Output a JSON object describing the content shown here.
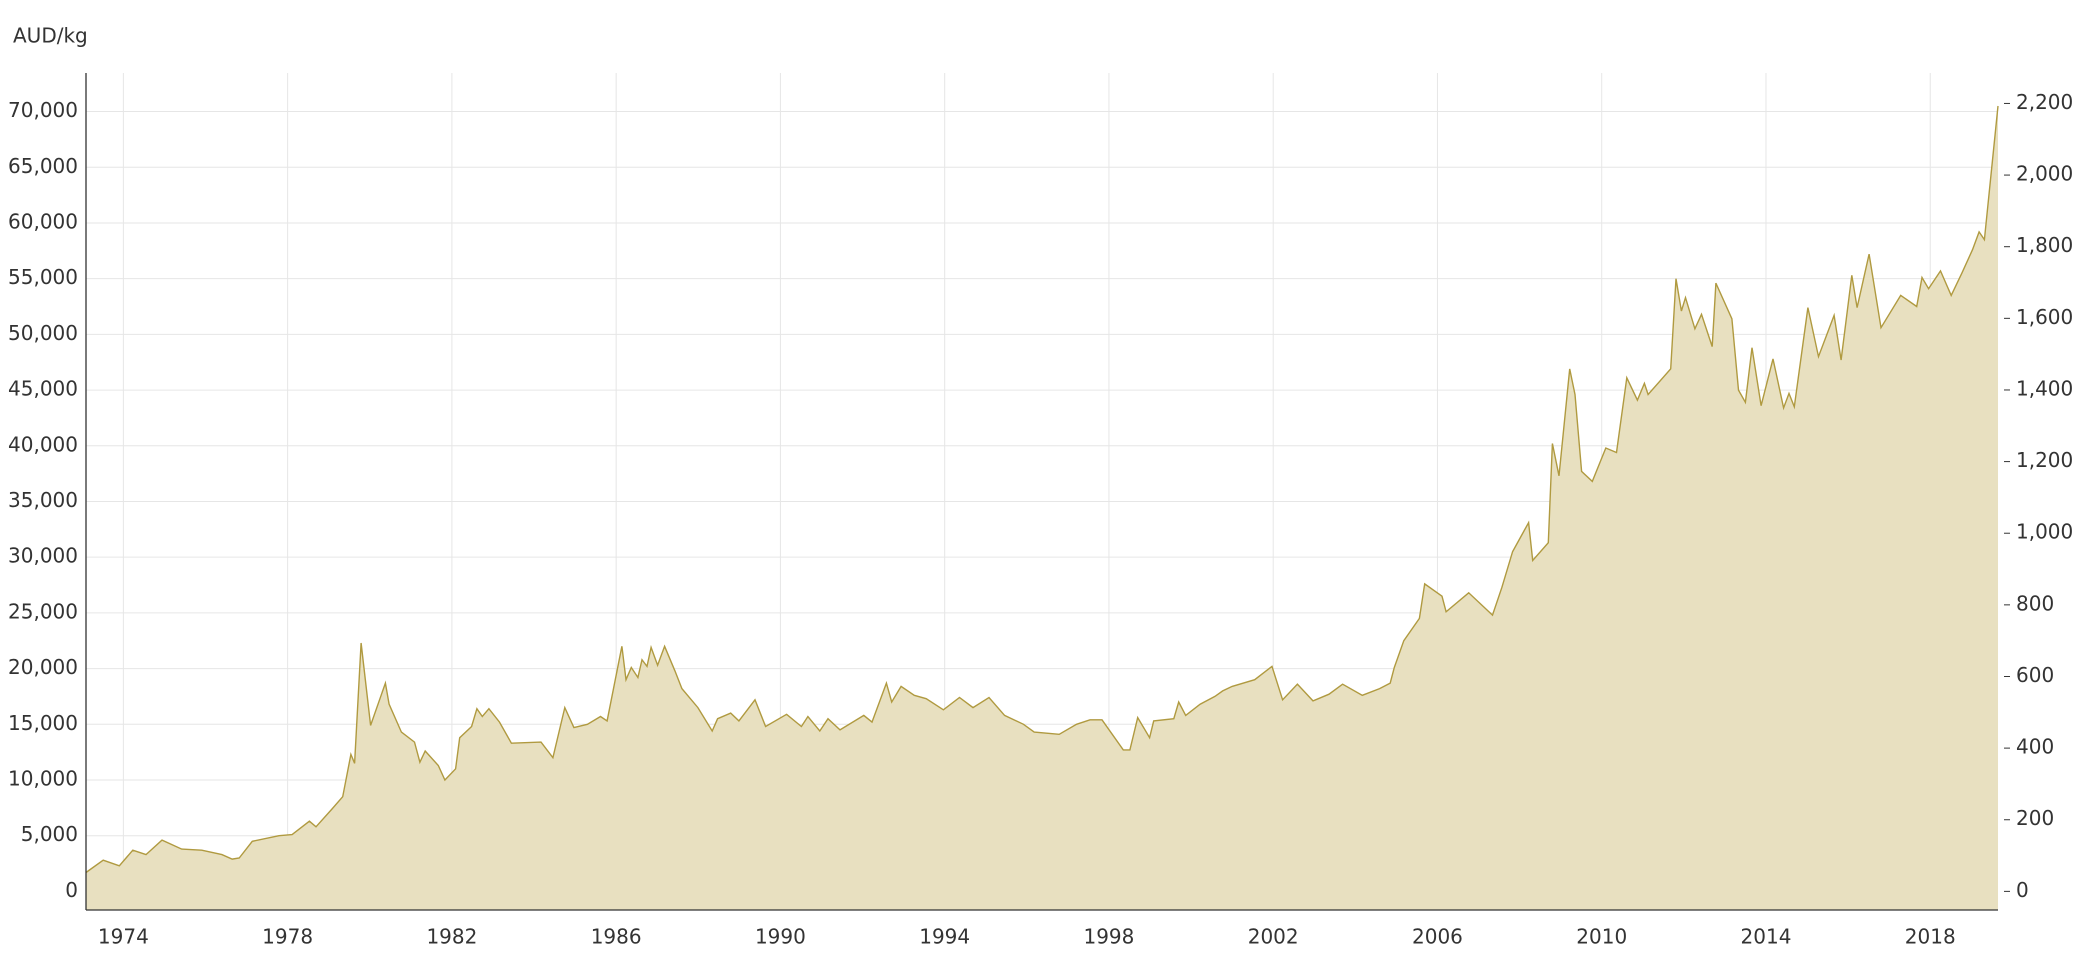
{
  "chart_data": {
    "type": "area",
    "y_label": "AUD/kg",
    "color": "#b09a40",
    "fill": "#e8e0c0",
    "grid": true,
    "xlim": [
      1973.09,
      2019.65
    ],
    "xticks": [
      1974,
      1978,
      1982,
      1986,
      1990,
      1994,
      1998,
      2002,
      2006,
      2010,
      2014,
      2018
    ],
    "ylim": [
      -1670,
      73460
    ],
    "yticks": [
      0,
      {
        "value": 5000,
        "label": "5,000"
      },
      {
        "value": 10000,
        "label": "10,000"
      },
      {
        "value": 15000,
        "label": "15,000"
      },
      {
        "value": 20000,
        "label": "20,000"
      },
      {
        "value": 25000,
        "label": "25,000"
      },
      {
        "value": 30000,
        "label": "30,000"
      },
      {
        "value": 35000,
        "label": "35,000"
      },
      {
        "value": 40000,
        "label": "40,000"
      },
      {
        "value": 45000,
        "label": "45,000"
      },
      {
        "value": 50000,
        "label": "50,000"
      },
      {
        "value": 55000,
        "label": "55,000"
      },
      {
        "value": 60000,
        "label": "60,000"
      },
      {
        "value": 65000,
        "label": "65,000"
      },
      {
        "value": 70000,
        "label": "70,000"
      }
    ],
    "y2lim": [
      -52,
      2285
    ],
    "y2ticks": [
      0,
      200,
      400,
      600,
      800,
      {
        "value": 1000,
        "label": "1,000"
      },
      {
        "value": 1200,
        "label": "1,200"
      },
      {
        "value": 1400,
        "label": "1,400"
      },
      {
        "value": 1600,
        "label": "1,600"
      },
      {
        "value": 1800,
        "label": "1,800"
      },
      {
        "value": 2000,
        "label": "2,000"
      },
      {
        "value": 2200,
        "label": "2,200"
      }
    ],
    "x": [
      1973.09,
      1973.51,
      1973.9,
      1974.23,
      1974.55,
      1974.94,
      1975.42,
      1975.91,
      1976.4,
      1976.65,
      1976.82,
      1977.14,
      1977.79,
      1978.11,
      1978.53,
      1978.69,
      1979.08,
      1979.34,
      1979.54,
      1979.63,
      1979.79,
      1980.02,
      1980.38,
      1980.47,
      1980.77,
      1981.09,
      1981.22,
      1981.35,
      1981.67,
      1981.83,
      1982.09,
      1982.19,
      1982.48,
      1982.61,
      1982.74,
      1982.9,
      1983.16,
      1983.45,
      1984.17,
      1984.46,
      1984.75,
      1984.97,
      1985.3,
      1985.62,
      1985.78,
      1986.14,
      1986.24,
      1986.37,
      1986.53,
      1986.63,
      1986.75,
      1986.85,
      1987.01,
      1987.18,
      1987.43,
      1987.6,
      1987.99,
      1988.34,
      1988.47,
      1988.79,
      1988.99,
      1989.38,
      1989.64,
      1990.15,
      1990.51,
      1990.67,
      1990.96,
      1991.16,
      1991.45,
      1992.03,
      1992.23,
      1992.58,
      1992.71,
      1992.94,
      1993.26,
      1993.55,
      1993.97,
      1994.36,
      1994.69,
      1995.08,
      1995.46,
      1995.92,
      1996.18,
      1996.79,
      1997.21,
      1997.54,
      1997.83,
      1998.35,
      1998.51,
      1998.7,
      1998.99,
      1999.09,
      1999.58,
      1999.7,
      1999.87,
      2000.22,
      2000.58,
      2000.77,
      2001.0,
      2001.55,
      2001.97,
      2002.23,
      2002.59,
      2002.97,
      2003.36,
      2003.69,
      2004.17,
      2004.59,
      2004.85,
      2004.95,
      2005.18,
      2005.56,
      2005.69,
      2006.11,
      2006.21,
      2006.76,
      2007.34,
      2007.57,
      2007.83,
      2008.22,
      2008.32,
      2008.7,
      2008.8,
      2008.96,
      2009.22,
      2009.35,
      2009.51,
      2009.77,
      2010.1,
      2010.36,
      2010.61,
      2010.87,
      2011.04,
      2011.13,
      2011.68,
      2011.81,
      2011.94,
      2012.04,
      2012.27,
      2012.43,
      2012.69,
      2012.78,
      2013.17,
      2013.33,
      2013.5,
      2013.66,
      2013.88,
      2014.17,
      2014.43,
      2014.56,
      2014.69,
      2015.02,
      2015.28,
      2015.66,
      2015.83,
      2016.09,
      2016.22,
      2016.51,
      2016.8,
      2017.28,
      2017.67,
      2017.8,
      2017.96,
      2018.25,
      2018.51,
      2018.77,
      2019.03,
      2019.19,
      2019.32,
      2019.65
    ],
    "values": [
      1700,
      2800,
      2300,
      3700,
      3300,
      4600,
      3800,
      3700,
      3300,
      2900,
      3000,
      4500,
      5000,
      5100,
      6300,
      5800,
      7400,
      8500,
      12300,
      11500,
      22300,
      14900,
      18700,
      16800,
      14300,
      13400,
      11600,
      12600,
      11300,
      10000,
      11000,
      13800,
      14800,
      16400,
      15700,
      16400,
      15200,
      13300,
      13400,
      12000,
      16500,
      14700,
      15000,
      15700,
      15300,
      22000,
      19000,
      20100,
      19200,
      20800,
      20200,
      21900,
      20300,
      22000,
      19800,
      18200,
      16500,
      14400,
      15500,
      16000,
      15300,
      17200,
      14800,
      15900,
      14800,
      15700,
      14400,
      15500,
      14500,
      15800,
      15200,
      18700,
      17000,
      18400,
      17600,
      17300,
      16300,
      17400,
      16500,
      17400,
      15800,
      15000,
      14300,
      14100,
      15000,
      15400,
      15400,
      12700,
      12700,
      15600,
      13800,
      15300,
      15500,
      17000,
      15800,
      16800,
      17500,
      18000,
      18400,
      19000,
      20200,
      17200,
      18600,
      17100,
      17700,
      18600,
      17600,
      18200,
      18700,
      20100,
      22500,
      24500,
      27600,
      26500,
      25100,
      26800,
      24800,
      27300,
      30500,
      33100,
      29700,
      31300,
      40200,
      37300,
      46900,
      44600,
      37700,
      36800,
      39800,
      39400,
      46100,
      44100,
      45600,
      44600,
      46900,
      55000,
      52100,
      53300,
      50500,
      51800,
      48900,
      54600,
      51400,
      45000,
      43900,
      48800,
      43600,
      47800,
      43400,
      44700,
      43500,
      52400,
      48000,
      51700,
      47700,
      55300,
      52400,
      57200,
      50600,
      53500,
      52500,
      55100,
      54100,
      55700,
      53500,
      55500,
      57600,
      59200,
      58500,
      70500
    ]
  }
}
